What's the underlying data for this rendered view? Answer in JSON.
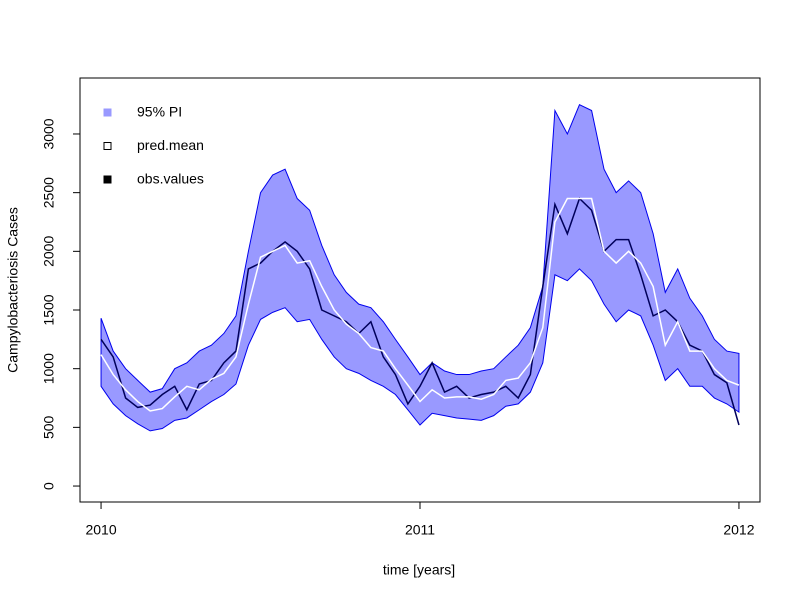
{
  "chart_data": {
    "type": "line",
    "xlabel": "time [years]",
    "ylabel": "Campylobacteriosis Cases",
    "x": [
      2010,
      2010.038,
      2010.077,
      2010.115,
      2010.154,
      2010.192,
      2010.231,
      2010.269,
      2010.308,
      2010.346,
      2010.385,
      2010.423,
      2010.462,
      2010.5,
      2010.538,
      2010.577,
      2010.615,
      2010.654,
      2010.692,
      2010.731,
      2010.769,
      2010.808,
      2010.846,
      2010.885,
      2010.923,
      2010.962,
      2011,
      2011.038,
      2011.077,
      2011.115,
      2011.154,
      2011.192,
      2011.231,
      2011.269,
      2011.308,
      2011.346,
      2011.385,
      2011.423,
      2011.462,
      2011.5,
      2011.538,
      2011.577,
      2011.615,
      2011.654,
      2011.692,
      2011.731,
      2011.769,
      2011.808,
      2011.846,
      2011.885,
      2011.923,
      2011.962,
      2012
    ],
    "band": {
      "name": "95% PI",
      "color": "#9999ff",
      "edge": "#0000ee",
      "upper": [
        1430,
        1150,
        1000,
        900,
        800,
        830,
        1000,
        1050,
        1150,
        1200,
        1300,
        1450,
        2000,
        2500,
        2650,
        2700,
        2450,
        2350,
        2050,
        1800,
        1650,
        1550,
        1520,
        1400,
        1250,
        1100,
        950,
        1050,
        980,
        950,
        950,
        980,
        1000,
        1100,
        1200,
        1350,
        1700,
        3200,
        3000,
        3250,
        3200,
        2700,
        2500,
        2600,
        2500,
        2150,
        1650,
        1850,
        1600,
        1450,
        1250,
        1150,
        1130
      ],
      "lower": [
        850,
        700,
        600,
        530,
        470,
        490,
        560,
        580,
        650,
        720,
        780,
        870,
        1200,
        1420,
        1480,
        1520,
        1400,
        1420,
        1250,
        1100,
        1000,
        960,
        900,
        850,
        780,
        650,
        520,
        620,
        600,
        580,
        570,
        560,
        600,
        680,
        700,
        800,
        1050,
        1800,
        1750,
        1850,
        1750,
        1550,
        1400,
        1500,
        1450,
        1200,
        900,
        1000,
        850,
        850,
        750,
        700,
        630
      ]
    },
    "series": [
      {
        "name": "pred.mean",
        "color": "#ffffff",
        "values": [
          1120,
          950,
          820,
          720,
          640,
          660,
          760,
          850,
          820,
          910,
          960,
          1100,
          1550,
          1950,
          2000,
          2050,
          1900,
          1920,
          1700,
          1500,
          1380,
          1300,
          1180,
          1150,
          1000,
          860,
          720,
          820,
          750,
          760,
          760,
          740,
          780,
          900,
          920,
          1050,
          1350,
          2250,
          2450,
          2450,
          2450,
          2000,
          1900,
          2000,
          1900,
          1700,
          1200,
          1400,
          1150,
          1150,
          1000,
          900,
          860
        ]
      },
      {
        "name": "obs.values",
        "color": "#00005a",
        "values": [
          1250,
          1100,
          750,
          670,
          690,
          780,
          850,
          650,
          870,
          900,
          1050,
          1150,
          1850,
          1900,
          2000,
          2080,
          2000,
          1850,
          1500,
          1450,
          1400,
          1300,
          1400,
          1100,
          950,
          700,
          850,
          1050,
          800,
          850,
          750,
          780,
          800,
          850,
          750,
          950,
          1700,
          2400,
          2150,
          2450,
          2350,
          2000,
          2100,
          2100,
          1800,
          1450,
          1500,
          1400,
          1200,
          1150,
          950,
          880,
          520
        ]
      }
    ],
    "xlim": [
      2009.934,
      2012.066
    ],
    "ylim": [
      -136,
      3477
    ],
    "xticks": [
      2010,
      2011,
      2012
    ],
    "yticks": [
      0,
      500,
      1000,
      1500,
      2000,
      2500,
      3000
    ]
  }
}
